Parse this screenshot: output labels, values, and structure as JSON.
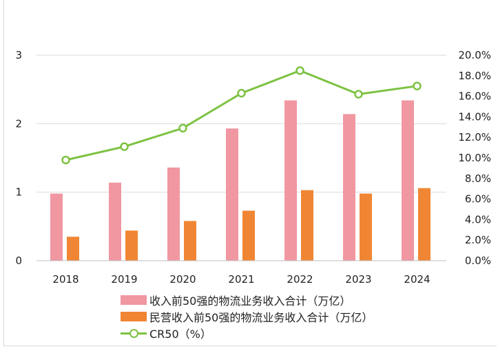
{
  "chart_data": {
    "type": "bar",
    "categories": [
      "2018",
      "2019",
      "2020",
      "2021",
      "2022",
      "2023",
      "2024"
    ],
    "series": [
      {
        "name": "收入前50强的物流业务收入合计（万亿）",
        "type": "bar",
        "axis": "left",
        "color": "#f097a1",
        "values": [
          0.98,
          1.14,
          1.36,
          1.93,
          2.34,
          2.14,
          2.34
        ]
      },
      {
        "name": "民营收入前50强的物流业务收入合计（万亿）",
        "type": "bar",
        "axis": "left",
        "color": "#f08634",
        "values": [
          0.35,
          0.44,
          0.58,
          0.73,
          1.03,
          0.98,
          1.06
        ]
      },
      {
        "name": "CR50（%）",
        "type": "line",
        "axis": "right",
        "color": "#7dc242",
        "values": [
          9.8,
          11.1,
          12.9,
          16.3,
          18.5,
          16.2,
          17.0
        ]
      }
    ],
    "ylim": [
      0,
      3
    ],
    "yticks": [
      "0",
      "1",
      "2",
      "3"
    ],
    "y2lim": [
      0,
      20
    ],
    "y2ticks": [
      "0.0%",
      "2.0%",
      "4.0%",
      "6.0%",
      "8.0%",
      "10.0%",
      "12.0%",
      "14.0%",
      "16.0%",
      "18.0%",
      "20.0%"
    ],
    "title": "",
    "xlabel": "",
    "ylabel": "",
    "legend_position": "bottom"
  }
}
